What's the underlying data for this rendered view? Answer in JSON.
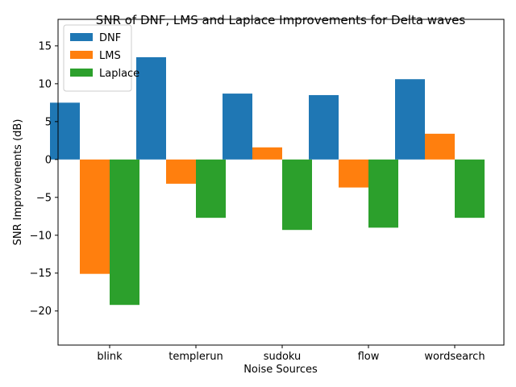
{
  "chart_data": {
    "type": "bar",
    "title": "SNR of DNF, LMS and Laplace Improvements for Delta waves",
    "xlabel": "Noise Sources",
    "ylabel": "SNR Improvements (dB)",
    "categories": [
      "blink",
      "templerun",
      "sudoku",
      "flow",
      "wordsearch"
    ],
    "series": [
      {
        "name": "DNF",
        "color": "#1f77b4",
        "values": [
          7.5,
          13.5,
          8.7,
          8.5,
          10.6
        ]
      },
      {
        "name": "LMS",
        "color": "#ff7f0e",
        "values": [
          -15.1,
          -3.2,
          1.6,
          -3.7,
          3.4
        ]
      },
      {
        "name": "Laplace",
        "color": "#2ca02c",
        "values": [
          -19.2,
          -7.7,
          -9.3,
          -9.0,
          -7.7
        ]
      }
    ],
    "ylim": [
      -24.5,
      18.5
    ],
    "yticks": [
      -20,
      -15,
      -10,
      -5,
      0,
      5,
      10,
      15
    ],
    "ytick_labels": [
      "−20",
      "−15",
      "−10",
      "−5",
      "0",
      "5",
      "10",
      "15"
    ],
    "grid": false,
    "legend_position": "upper-left"
  }
}
